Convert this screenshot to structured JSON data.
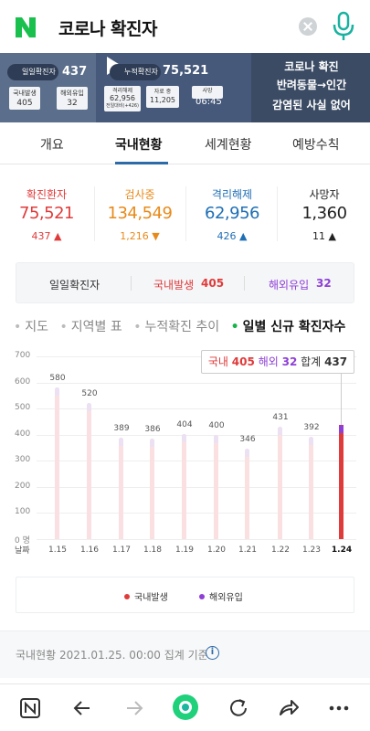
{
  "search": {
    "query": "코로나 확진자"
  },
  "banner": {
    "daily_label": "일일확진자",
    "daily_value": "437",
    "cum_label": "누적확진자",
    "cum_value": "75,521",
    "local_label": "국내발생",
    "local_value": "405",
    "overseas_label": "해외유입",
    "overseas_value": "32",
    "released_label": "격리해제",
    "released_value": "62,956",
    "released_sub": "전일대비(+426)",
    "testing_label": "자료 중",
    "testing_value": "11,205",
    "death_label": "사망",
    "death_value": "1,360",
    "headline_1": "코로나 확진",
    "headline_2": "반려동물→인간",
    "headline_3": "감염된 사실 없어",
    "time": "06:45"
  },
  "tabs": [
    "개요",
    "국내현황",
    "세계현황",
    "예방수칙"
  ],
  "stats": [
    {
      "label": "확진환자",
      "value": "75,521",
      "change": "437",
      "dir": "up",
      "color": "#e03b3b"
    },
    {
      "label": "검사중",
      "value": "134,549",
      "change": "1,216",
      "dir": "down",
      "color": "#e88a1a"
    },
    {
      "label": "격리해제",
      "value": "62,956",
      "change": "426",
      "dir": "up",
      "color": "#1f6fb5"
    },
    {
      "label": "사망자",
      "value": "1,360",
      "change": "11",
      "dir": "up",
      "color": "#222222"
    }
  ],
  "daily": {
    "label": "일일확진자",
    "local_label": "국내발생",
    "local_value": "405",
    "overseas_label": "해외유입",
    "overseas_value": "32"
  },
  "filters": [
    "지도",
    "지역별 표",
    "누적확진 추이",
    "일별 신규 확진자수"
  ],
  "chart_data": {
    "type": "bar",
    "categories": [
      "1.15",
      "1.16",
      "1.17",
      "1.18",
      "1.19",
      "1.20",
      "1.21",
      "1.22",
      "1.23",
      "1.24"
    ],
    "values": [
      580,
      520,
      389,
      386,
      404,
      400,
      346,
      431,
      392,
      437
    ],
    "series": [
      {
        "name": "국내발생",
        "values": [
          null,
          null,
          null,
          null,
          null,
          null,
          null,
          null,
          null,
          405
        ]
      },
      {
        "name": "해외유입",
        "values": [
          null,
          null,
          null,
          null,
          null,
          null,
          null,
          null,
          null,
          32
        ]
      }
    ],
    "yticks": [
      "700",
      "600",
      "500",
      "400",
      "300",
      "200",
      "100",
      "0 명"
    ],
    "ylim": [
      0,
      700
    ],
    "xlabel": "날짜",
    "highlight": {
      "local_label": "국내",
      "local": "405",
      "overseas_label": "해외",
      "overseas": "32",
      "total_label": "합계",
      "total": "437"
    },
    "legend": [
      "국내발생",
      "해외유입"
    ],
    "colors": {
      "local": "#e03b3b",
      "overseas": "#8e3fd6"
    }
  },
  "footer": {
    "text": "국내현황 2021.01.25. 00:00 집계 기준",
    "info": "i"
  }
}
